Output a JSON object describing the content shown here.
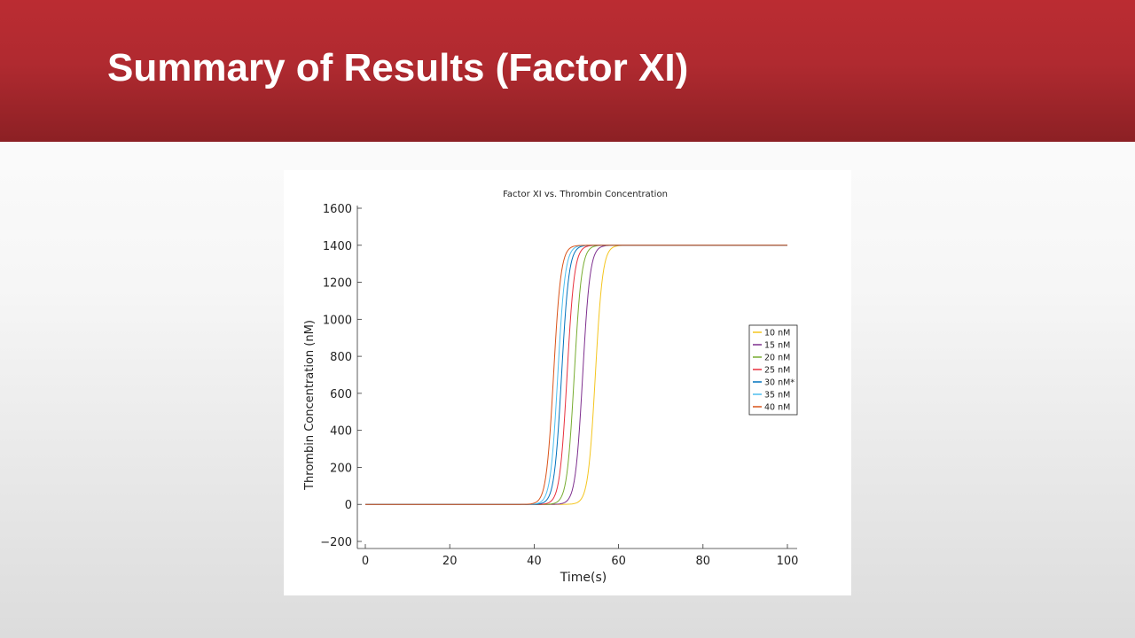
{
  "slide": {
    "title": "Summary of Results (Factor XI)",
    "title_bar_color": "#b02a30"
  },
  "chart_data": {
    "type": "line",
    "title": "Factor XI vs. Thrombin Concentration",
    "xlabel": "Time(s)",
    "ylabel": "Thrombin Concentration (nM)",
    "xlim": [
      0,
      100
    ],
    "ylim": [
      -200,
      1600
    ],
    "xticks": [
      0,
      20,
      40,
      60,
      80,
      100
    ],
    "yticks": [
      -200,
      0,
      200,
      400,
      600,
      800,
      1000,
      1200,
      1400,
      1600
    ],
    "ytick_labels": [
      "−200",
      "0",
      "200",
      "400",
      "600",
      "800",
      "1000",
      "1200",
      "1400",
      "1600"
    ],
    "grid": false,
    "legend_position": "right",
    "plateau": 1400,
    "x_end": 100,
    "series": [
      {
        "name": "10 nM",
        "color": "#f4c51e",
        "midpoint_s": 54.5
      },
      {
        "name": "15 nM",
        "color": "#7e2f8e",
        "midpoint_s": 51.5
      },
      {
        "name": "20 nM",
        "color": "#77ac30",
        "midpoint_s": 49.5
      },
      {
        "name": "25 nM",
        "color": "#e8303d",
        "midpoint_s": 47.8
      },
      {
        "name": "30 nM*",
        "color": "#0072bd",
        "midpoint_s": 46.5
      },
      {
        "name": "35 nM",
        "color": "#4dbeee",
        "midpoint_s": 45.6
      },
      {
        "name": "40 nM",
        "color": "#d95319",
        "midpoint_s": 44.6
      }
    ]
  }
}
